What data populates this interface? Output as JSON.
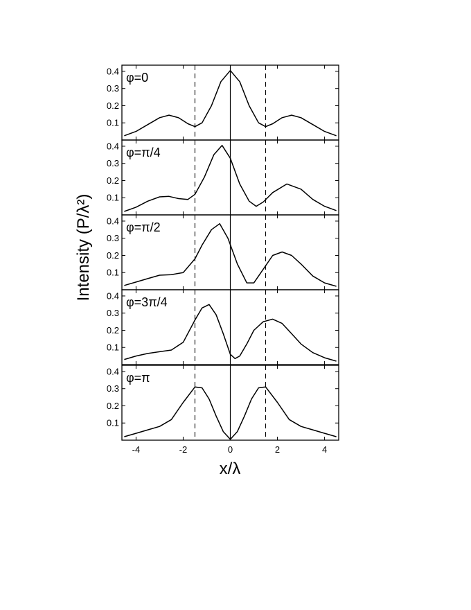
{
  "chart_data": {
    "type": "line",
    "xlabel": "x/λ",
    "ylabel": "Intensity (P/λ²)",
    "xlim": [
      -4.6,
      4.6
    ],
    "xticks": [
      -4,
      -2,
      0,
      2,
      4
    ],
    "xtick_labels": [
      "-4",
      "-2",
      "0",
      "2",
      "4"
    ],
    "ylim": [
      0,
      0.42
    ],
    "yticks": [
      0.1,
      0.2,
      0.3,
      0.4
    ],
    "ytick_labels": [
      "0.1",
      "0.2",
      "0.3",
      "0.4"
    ],
    "reference_lines": {
      "solid_x": [
        0
      ],
      "dashed_x": [
        -1.5,
        1.5
      ]
    },
    "grid": false,
    "panels": [
      {
        "label": "φ=0",
        "x": [
          -4.5,
          -4.0,
          -3.5,
          -3.0,
          -2.6,
          -2.2,
          -1.8,
          -1.5,
          -1.2,
          -0.8,
          -0.4,
          0.0,
          0.4,
          0.8,
          1.2,
          1.5,
          1.8,
          2.2,
          2.6,
          3.0,
          3.5,
          4.0,
          4.5
        ],
        "y": [
          0.025,
          0.05,
          0.09,
          0.13,
          0.145,
          0.13,
          0.095,
          0.078,
          0.1,
          0.2,
          0.34,
          0.405,
          0.34,
          0.2,
          0.1,
          0.078,
          0.095,
          0.13,
          0.145,
          0.13,
          0.09,
          0.05,
          0.025
        ]
      },
      {
        "label": "φ=π/4",
        "x": [
          -4.5,
          -4.0,
          -3.5,
          -3.0,
          -2.6,
          -2.2,
          -1.8,
          -1.5,
          -1.1,
          -0.7,
          -0.35,
          0.0,
          0.4,
          0.8,
          1.1,
          1.4,
          1.8,
          2.4,
          3.0,
          3.5,
          4.0,
          4.5
        ],
        "y": [
          0.02,
          0.045,
          0.08,
          0.105,
          0.108,
          0.095,
          0.09,
          0.12,
          0.22,
          0.35,
          0.405,
          0.33,
          0.18,
          0.08,
          0.05,
          0.075,
          0.13,
          0.18,
          0.15,
          0.09,
          0.05,
          0.025
        ]
      },
      {
        "label": "φ=π/2",
        "x": [
          -4.5,
          -4.0,
          -3.5,
          -3.0,
          -2.5,
          -2.0,
          -1.5,
          -1.2,
          -0.8,
          -0.45,
          -0.1,
          0.3,
          0.7,
          1.0,
          1.4,
          1.8,
          2.2,
          2.6,
          3.0,
          3.5,
          4.0,
          4.5
        ],
        "y": [
          0.025,
          0.045,
          0.065,
          0.085,
          0.088,
          0.1,
          0.18,
          0.26,
          0.35,
          0.385,
          0.3,
          0.15,
          0.04,
          0.04,
          0.12,
          0.2,
          0.22,
          0.2,
          0.15,
          0.08,
          0.04,
          0.02
        ]
      },
      {
        "label": "φ=3π/4",
        "x": [
          -4.5,
          -4.0,
          -3.5,
          -3.0,
          -2.5,
          -2.0,
          -1.5,
          -1.2,
          -0.9,
          -0.6,
          -0.3,
          0.0,
          0.2,
          0.4,
          0.7,
          1.0,
          1.4,
          1.8,
          2.2,
          2.6,
          3.0,
          3.5,
          4.0,
          4.5
        ],
        "y": [
          0.03,
          0.05,
          0.065,
          0.075,
          0.085,
          0.13,
          0.26,
          0.33,
          0.35,
          0.29,
          0.18,
          0.06,
          0.035,
          0.05,
          0.12,
          0.2,
          0.25,
          0.265,
          0.24,
          0.18,
          0.12,
          0.07,
          0.04,
          0.02
        ]
      },
      {
        "label": "φ=π",
        "x": [
          -4.5,
          -4.0,
          -3.5,
          -3.0,
          -2.5,
          -2.0,
          -1.5,
          -1.2,
          -0.9,
          -0.6,
          -0.3,
          0.0,
          0.3,
          0.6,
          0.9,
          1.2,
          1.5,
          2.0,
          2.5,
          3.0,
          3.5,
          4.0,
          4.5
        ],
        "y": [
          0.02,
          0.04,
          0.06,
          0.08,
          0.12,
          0.22,
          0.31,
          0.305,
          0.24,
          0.14,
          0.05,
          0.005,
          0.05,
          0.14,
          0.24,
          0.305,
          0.31,
          0.22,
          0.12,
          0.08,
          0.06,
          0.04,
          0.02
        ]
      }
    ]
  }
}
